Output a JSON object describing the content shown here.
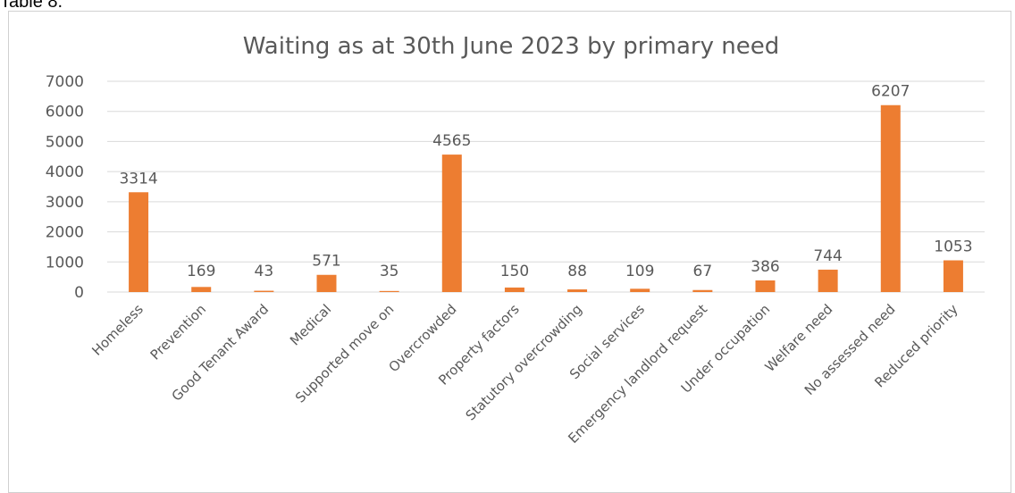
{
  "page": {
    "heading": "Table 8."
  },
  "chart_data": {
    "type": "bar",
    "title": "Waiting as at 30th June 2023 by primary need",
    "xlabel": "",
    "ylabel": "",
    "ylim": [
      0,
      7000
    ],
    "yticks": [
      0,
      1000,
      2000,
      3000,
      4000,
      5000,
      6000,
      7000
    ],
    "grid": true,
    "legend": "none",
    "bar_color": "#ED7D31",
    "categories": [
      "Homeless",
      "Prevention",
      "Good Tenant Award",
      "Medical",
      "Supported move on",
      "Overcrowded",
      "Property factors",
      "Statutory overcrowding",
      "Social services",
      "Emergency landlord request",
      "Under occupation",
      "Welfare need",
      "No assessed need",
      "Reduced priority"
    ],
    "values": [
      3314,
      169,
      43,
      571,
      35,
      4565,
      150,
      88,
      109,
      67,
      386,
      744,
      6207,
      1053
    ],
    "data_labels": [
      "3314",
      "169",
      "43",
      "571",
      "35",
      "4565",
      "150",
      "88",
      "109",
      "67",
      "386",
      "744",
      "6207",
      "1053"
    ],
    "ytick_labels": [
      "0",
      "1000",
      "2000",
      "3000",
      "4000",
      "5000",
      "6000",
      "7000"
    ]
  }
}
